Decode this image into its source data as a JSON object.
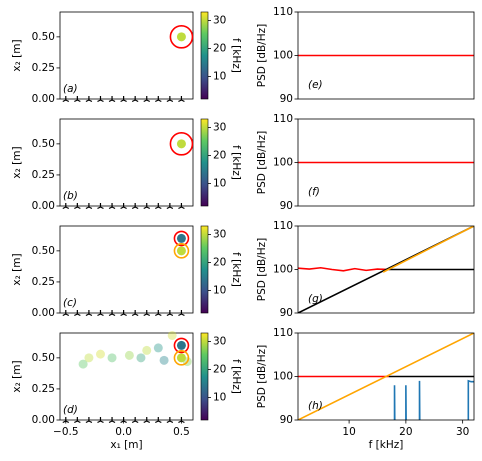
{
  "chart_data": [
    {
      "type": "scatter",
      "label": "(a)",
      "ylabel": "x₂ [m]",
      "xlim": [
        -0.55,
        0.6
      ],
      "ylim": [
        0,
        0.7
      ],
      "yticks": [
        {
          "value": 0,
          "label": "0.00"
        },
        {
          "value": 0.25,
          "label": "0.25"
        },
        {
          "value": 0.5,
          "label": "0.50"
        }
      ],
      "colorbar": {
        "label": "f [kHz]",
        "lim": [
          2,
          33
        ],
        "ticks": [
          10,
          20,
          30
        ],
        "colormap": "viridis"
      },
      "microphones": {
        "x": [
          -0.5,
          -0.4,
          -0.3,
          -0.2,
          -0.1,
          0,
          0.1,
          0.2,
          0.3,
          0.4,
          0.5
        ],
        "y": [
          0,
          0,
          0,
          0,
          0,
          0,
          0,
          0,
          0,
          0,
          0
        ]
      },
      "points": [
        {
          "x": [
            0.5
          ],
          "y": [
            0.5
          ],
          "f": [
            30
          ],
          "alpha": 1
        }
      ],
      "rings": [
        {
          "x": 0.5,
          "y": 0.5,
          "color": "#ff0000",
          "size": 11
        }
      ]
    },
    {
      "type": "line",
      "label": "(e)",
      "ylabel": "PSD [dB/Hz]",
      "xlim": [
        1,
        32
      ],
      "ylim": [
        90,
        110
      ],
      "yticks": [
        90,
        100,
        110
      ],
      "series": [
        {
          "color": "#ff0000",
          "x": [
            1,
            32
          ],
          "values": [
            100,
            100
          ]
        }
      ]
    },
    {
      "type": "scatter",
      "label": "(b)",
      "ylabel": "x₂ [m]",
      "xlim": [
        -0.55,
        0.6
      ],
      "ylim": [
        0,
        0.7
      ],
      "yticks": [
        {
          "value": 0,
          "label": "0.00"
        },
        {
          "value": 0.25,
          "label": "0.25"
        },
        {
          "value": 0.5,
          "label": "0.50"
        }
      ],
      "colorbar": {
        "label": "f [kHz]",
        "lim": [
          2,
          33
        ],
        "ticks": [
          10,
          20,
          30
        ],
        "colormap": "viridis"
      },
      "microphones": {
        "x": [
          -0.5,
          -0.4,
          -0.3,
          -0.2,
          -0.1,
          0,
          0.1,
          0.2,
          0.3,
          0.4,
          0.5
        ],
        "y": [
          0,
          0,
          0,
          0,
          0,
          0,
          0,
          0,
          0,
          0,
          0
        ]
      },
      "points": [
        {
          "x": [
            0.5
          ],
          "y": [
            0.5
          ],
          "f": [
            30
          ],
          "alpha": 1
        }
      ],
      "rings": [
        {
          "x": 0.5,
          "y": 0.5,
          "color": "#ff0000",
          "size": 11
        }
      ]
    },
    {
      "type": "line",
      "label": "(f)",
      "ylabel": "PSD [dB/Hz]",
      "xlim": [
        1,
        32
      ],
      "ylim": [
        90,
        110
      ],
      "yticks": [
        90,
        100,
        110
      ],
      "series": [
        {
          "color": "#ff0000",
          "x": [
            1,
            32
          ],
          "values": [
            100,
            100
          ]
        }
      ]
    },
    {
      "type": "scatter",
      "label": "(c)",
      "ylabel": "x₂ [m]",
      "xlim": [
        -0.55,
        0.6
      ],
      "ylim": [
        0,
        0.7
      ],
      "yticks": [
        {
          "value": 0,
          "label": "0.00"
        },
        {
          "value": 0.25,
          "label": "0.25"
        },
        {
          "value": 0.5,
          "label": "0.50"
        }
      ],
      "colorbar": {
        "label": "f [kHz]",
        "lim": [
          2,
          33
        ],
        "ticks": [
          10,
          20,
          30
        ],
        "colormap": "viridis"
      },
      "microphones": {
        "x": [
          -0.5,
          -0.4,
          -0.3,
          -0.2,
          -0.1,
          0,
          0.1,
          0.2,
          0.3,
          0.4,
          0.5
        ],
        "y": [
          0,
          0,
          0,
          0,
          0,
          0,
          0,
          0,
          0,
          0,
          0
        ]
      },
      "points": [
        {
          "x": [
            0.5,
            0.5
          ],
          "y": [
            0.6,
            0.5
          ],
          "f": [
            14,
            30
          ],
          "alpha": 1
        }
      ],
      "rings": [
        {
          "x": 0.5,
          "y": 0.6,
          "color": "#ff0000",
          "size": 7
        },
        {
          "x": 0.5,
          "y": 0.5,
          "color": "#ffa500",
          "size": 7
        }
      ]
    },
    {
      "type": "line",
      "label": "(g)",
      "ylabel": "PSD [dB/Hz]",
      "xlim": [
        1,
        32
      ],
      "ylim": [
        90,
        110
      ],
      "yticks": [
        90,
        100,
        110
      ],
      "series": [
        {
          "color": "#ff0000",
          "x": [
            1,
            3,
            5,
            7,
            9,
            11,
            13,
            15,
            17
          ],
          "values": [
            100.3,
            100.1,
            100.4,
            100,
            99.7,
            100.2,
            99.8,
            100.1,
            100
          ]
        },
        {
          "color": "#000000",
          "x": [
            1,
            32
          ],
          "values": [
            90,
            110
          ]
        },
        {
          "color": "#000000",
          "x": [
            17,
            32
          ],
          "values": [
            100,
            100
          ]
        },
        {
          "color": "#ffa500",
          "x": [
            16,
            32
          ],
          "values": [
            99.4,
            110
          ]
        }
      ]
    },
    {
      "type": "scatter",
      "label": "(d)",
      "ylabel": "x₂ [m]",
      "xlabel": "x₁ [m]",
      "xlim": [
        -0.55,
        0.6
      ],
      "ylim": [
        0,
        0.7
      ],
      "xticks": [
        {
          "value": -0.5,
          "label": "−0.5"
        },
        {
          "value": 0,
          "label": "0.0"
        },
        {
          "value": 0.5,
          "label": "0.5"
        }
      ],
      "yticks": [
        {
          "value": 0,
          "label": "0.00"
        },
        {
          "value": 0.25,
          "label": "0.25"
        },
        {
          "value": 0.5,
          "label": "0.50"
        }
      ],
      "colorbar": {
        "label": "f [kHz]",
        "lim": [
          2,
          33
        ],
        "ticks": [
          10,
          20,
          30
        ],
        "colormap": "viridis"
      },
      "microphones": {
        "x": [
          -0.5,
          -0.4,
          -0.3,
          -0.2,
          -0.1,
          0,
          0.1,
          0.2,
          0.3,
          0.4,
          0.5
        ],
        "y": [
          0,
          0,
          0,
          0,
          0,
          0,
          0,
          0,
          0,
          0,
          0
        ]
      },
      "points": [
        {
          "x": [
            -0.35,
            -0.3,
            -0.2,
            -0.1,
            0.05,
            0.15,
            0.2,
            0.3,
            0.35,
            0.42,
            0.55
          ],
          "y": [
            0.45,
            0.5,
            0.53,
            0.5,
            0.52,
            0.5,
            0.56,
            0.58,
            0.48,
            0.68,
            0.47
          ],
          "f": [
            25,
            30,
            31,
            24,
            28,
            20,
            30,
            18,
            16,
            31,
            27
          ],
          "alpha": 0.4
        },
        {
          "x": [
            0.5,
            0.5
          ],
          "y": [
            0.6,
            0.5
          ],
          "f": [
            14,
            30
          ],
          "alpha": 1
        }
      ],
      "rings": [
        {
          "x": 0.5,
          "y": 0.6,
          "color": "#ff0000",
          "size": 7
        },
        {
          "x": 0.5,
          "y": 0.5,
          "color": "#ffa500",
          "size": 7
        }
      ]
    },
    {
      "type": "line",
      "label": "(h)",
      "ylabel": "PSD [dB/Hz]",
      "xlabel": "f [kHz]",
      "xlim": [
        1,
        32
      ],
      "ylim": [
        90,
        110
      ],
      "yticks": [
        90,
        100,
        110
      ],
      "xticks": [
        10,
        20,
        30
      ],
      "series": [
        {
          "color": "#ff0000",
          "x": [
            1,
            17
          ],
          "values": [
            100,
            100
          ]
        },
        {
          "color": "#000000",
          "x": [
            17,
            32
          ],
          "values": [
            100,
            100
          ]
        },
        {
          "color": "#ffa500",
          "x": [
            1,
            32
          ],
          "values": [
            90,
            110
          ]
        },
        {
          "color": "#1f77b4",
          "x": [
            18,
            18,
            18.1,
            0,
            20,
            20,
            20.1,
            0,
            22.4,
            22.4,
            22.5,
            0,
            31,
            31,
            31.5,
            32
          ],
          "values": [
            80,
            98,
            80,
            null,
            80,
            98,
            80,
            null,
            80,
            99,
            80,
            null,
            80,
            99,
            98.8,
            98.8
          ]
        }
      ]
    }
  ]
}
